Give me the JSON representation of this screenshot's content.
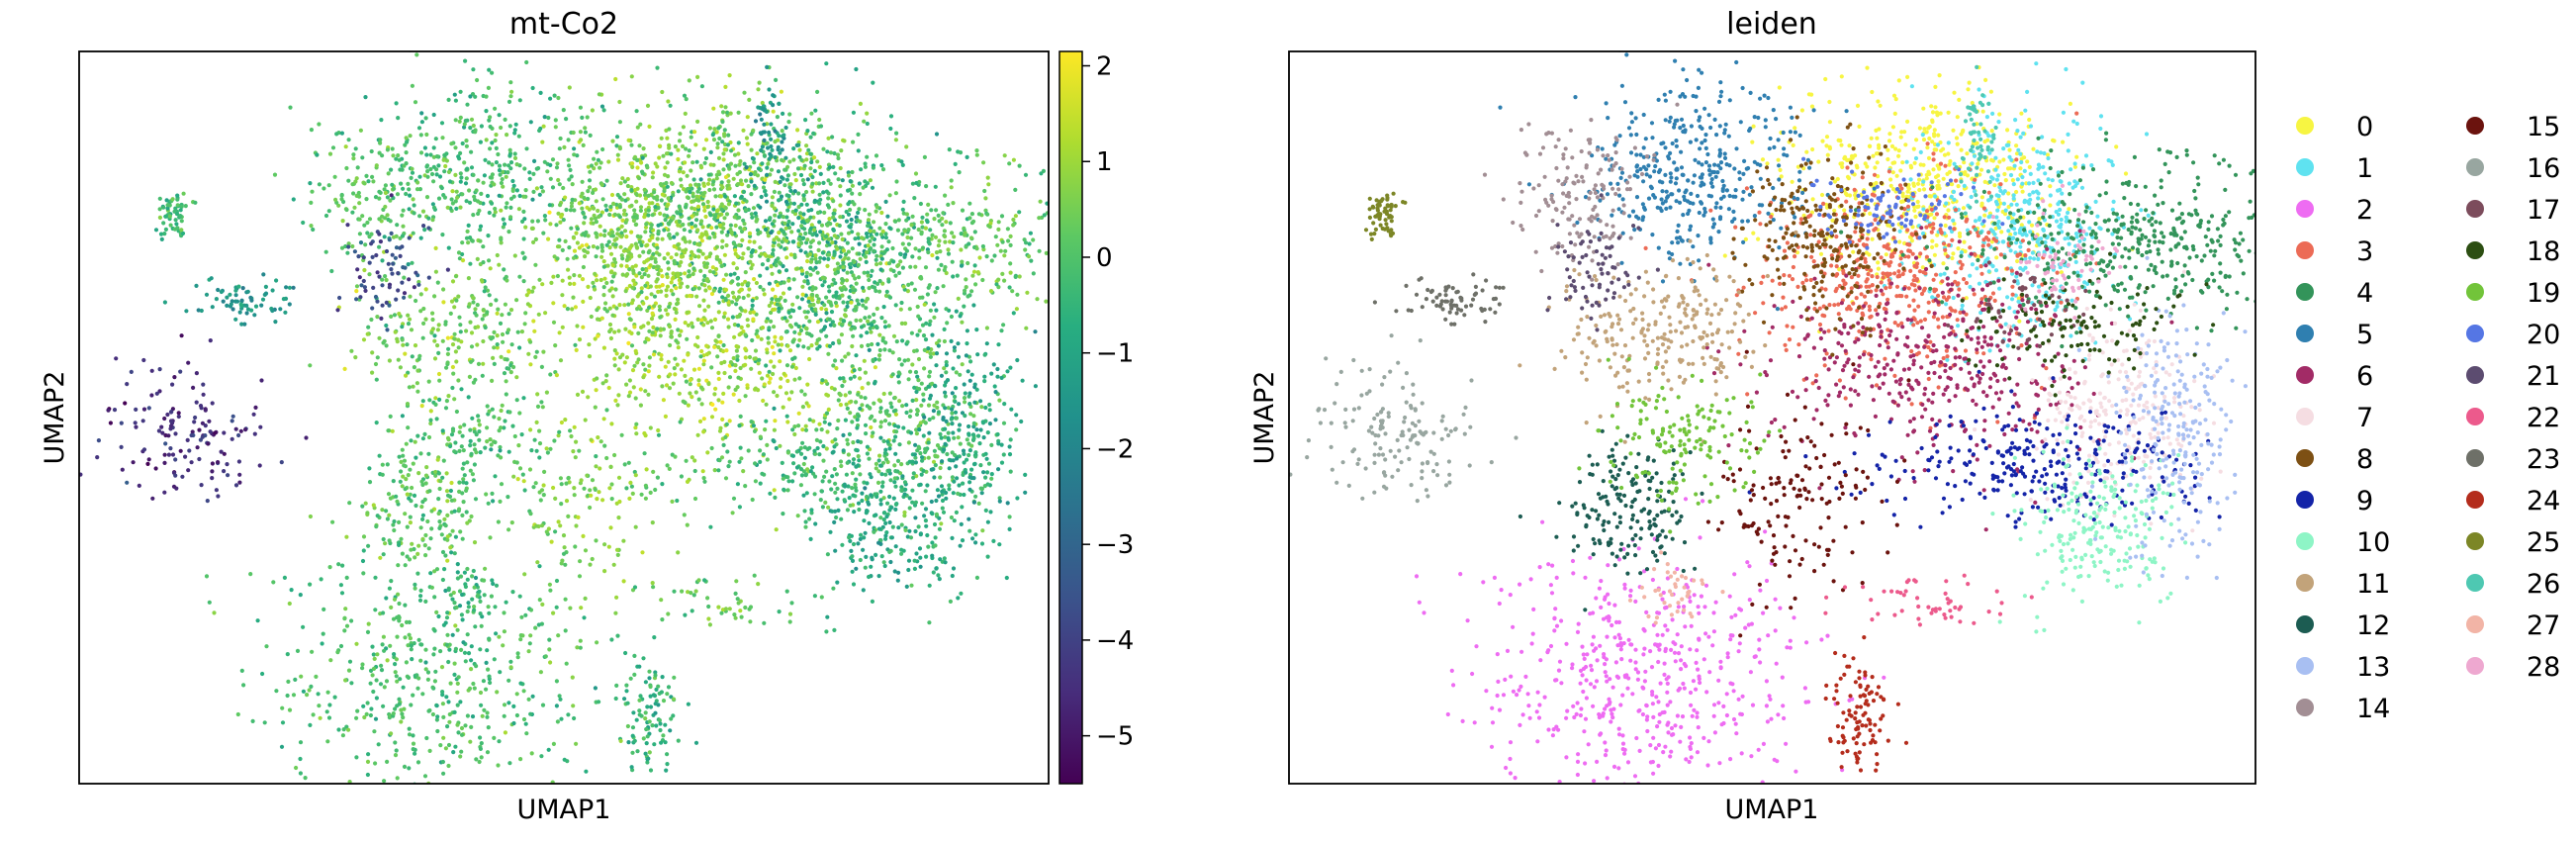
{
  "chart_data": [
    {
      "type": "scatter",
      "title": "mt-Co2",
      "xlabel": "UMAP1",
      "ylabel": "UMAP2",
      "grid": false,
      "x_ticks_shown": false,
      "y_ticks_shown": false,
      "colorbar": {
        "colormap": "viridis",
        "range": [
          -5.5,
          2.15
        ],
        "ticks": [
          2,
          1,
          0,
          -1,
          -2,
          -3,
          -4,
          -5
        ],
        "tick_labels": [
          "2",
          "1",
          "0",
          "−1",
          "−2",
          "−3",
          "−4",
          "−5"
        ]
      }
    },
    {
      "type": "scatter",
      "title": "leiden",
      "xlabel": "UMAP1",
      "ylabel": "UMAP2",
      "grid": false,
      "legend_placement": "right",
      "legend": [
        {
          "label": "0",
          "color": "#f7f542"
        },
        {
          "label": "1",
          "color": "#5fe2f0"
        },
        {
          "label": "2",
          "color": "#ee6cf2"
        },
        {
          "label": "3",
          "color": "#ec6b56"
        },
        {
          "label": "4",
          "color": "#33945a"
        },
        {
          "label": "5",
          "color": "#2f7fb0"
        },
        {
          "label": "6",
          "color": "#a22b66"
        },
        {
          "label": "7",
          "color": "#f5dde2"
        },
        {
          "label": "8",
          "color": "#7d5014"
        },
        {
          "label": "9",
          "color": "#1424a8"
        },
        {
          "label": "10",
          "color": "#8ef5c6"
        },
        {
          "label": "11",
          "color": "#c2a37a"
        },
        {
          "label": "12",
          "color": "#1c5c52"
        },
        {
          "label": "13",
          "color": "#a8bff2"
        },
        {
          "label": "14",
          "color": "#a28e94"
        },
        {
          "label": "15",
          "color": "#6b130e"
        },
        {
          "label": "16",
          "color": "#98a6a0"
        },
        {
          "label": "17",
          "color": "#7c4c5c"
        },
        {
          "label": "18",
          "color": "#2c4e12"
        },
        {
          "label": "19",
          "color": "#72c43a"
        },
        {
          "label": "20",
          "color": "#5576e4"
        },
        {
          "label": "21",
          "color": "#5c4c70"
        },
        {
          "label": "22",
          "color": "#ec5a8c"
        },
        {
          "label": "23",
          "color": "#6e7068"
        },
        {
          "label": "24",
          "color": "#b42c1c"
        },
        {
          "label": "25",
          "color": "#7c8626"
        },
        {
          "label": "26",
          "color": "#4ec8b2"
        },
        {
          "label": "27",
          "color": "#f2b4a6"
        },
        {
          "label": "28",
          "color": "#eea8d0"
        }
      ]
    }
  ]
}
